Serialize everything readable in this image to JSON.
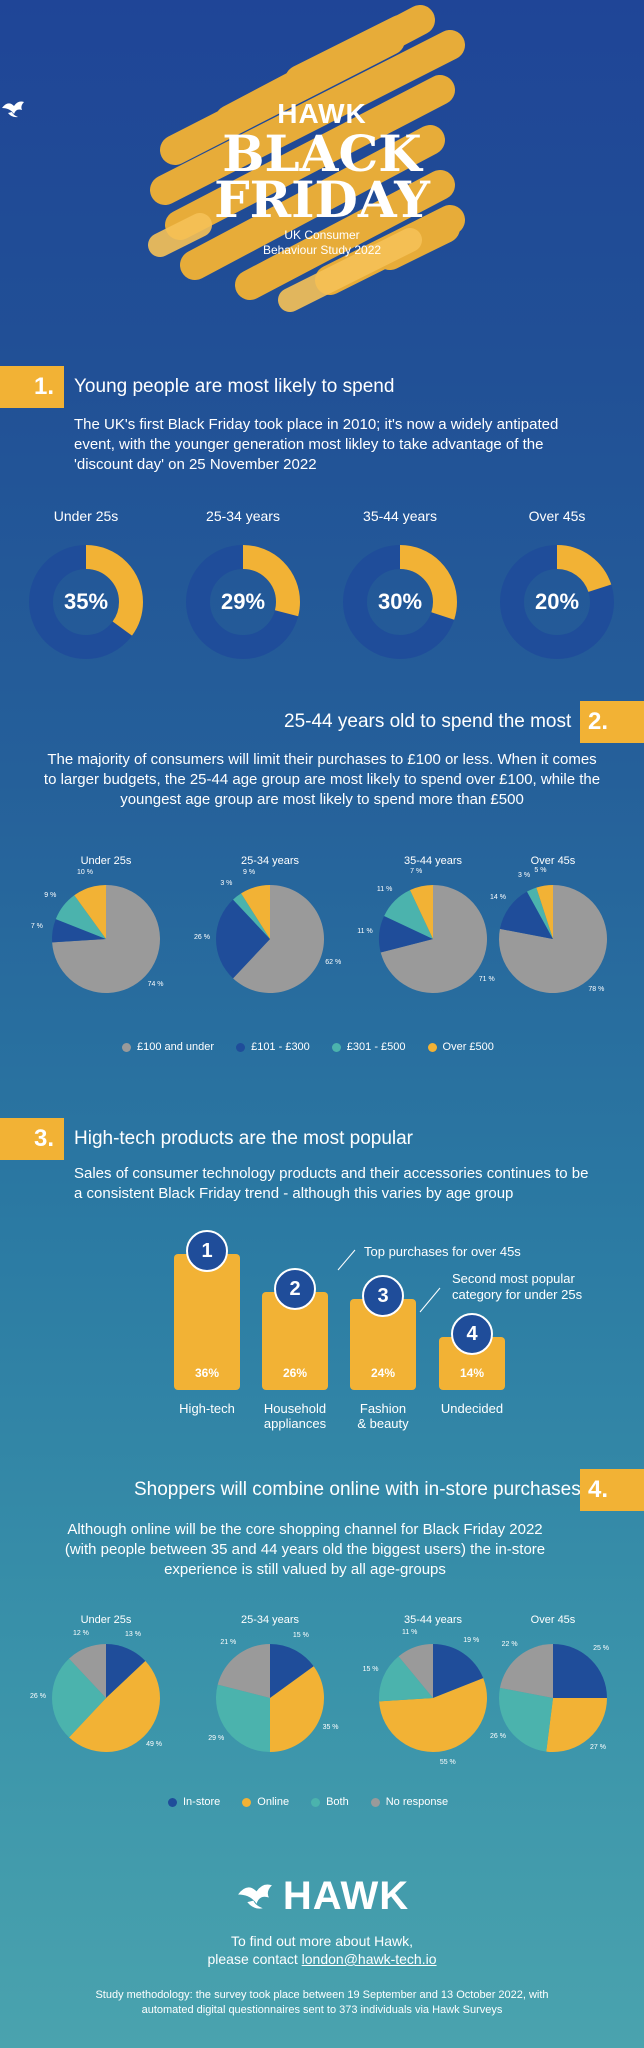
{
  "hero": {
    "brand": "HAWK",
    "title_line1": "BLACK",
    "title_line2": "FRIDAY",
    "subtitle_line1": "UK Consumer",
    "subtitle_line2": "Behaviour Study 2022"
  },
  "colors": {
    "navy": "#1f4d9a",
    "yellow": "#f2b235",
    "teal": "#4bb3ad",
    "grey": "#9a9a9a"
  },
  "section1": {
    "number": "1.",
    "title": "Young people are most likely to spend",
    "text": "The UK's first Black Friday took place in 2010; it's now a widely antipated event, with the younger generation most likley to take advantage of the 'discount day' on 25 November 2022",
    "donuts": [
      {
        "label": "Under 25s",
        "percent_text": "35%",
        "value": 35
      },
      {
        "label": "25-34 years",
        "percent_text": "29%",
        "value": 29
      },
      {
        "label": "35-44 years",
        "percent_text": "30%",
        "value": 30
      },
      {
        "label": "Over 45s",
        "percent_text": "20%",
        "value": 20
      }
    ]
  },
  "section2": {
    "number": "2.",
    "title": "25-44 years old to spend the most",
    "text": "The majority of consumers will limit their purchases to £100 or less. When it comes to larger budgets, the 25-44 age group are most likely to spend over £100, while the youngest age group are most likely to spend more than £500",
    "legend": [
      "£100 and under",
      "£101 - £300",
      "£301 - £500",
      "Over £500"
    ]
  },
  "section3": {
    "number": "3.",
    "title": "High-tech products are the most popular",
    "text": "Sales of consumer technology products and their accessories continues to be a consistent Black Friday trend - although this varies by age group",
    "note1": "Top purchases for over 45s",
    "note2_line1": "Second most popular",
    "note2_line2": "category for under 25s",
    "bars": [
      {
        "rank": "1",
        "percent_text": "36%",
        "value": 36,
        "label_line1": "High-tech",
        "label_line2": ""
      },
      {
        "rank": "2",
        "percent_text": "26%",
        "value": 26,
        "label_line1": "Household",
        "label_line2": "appliances"
      },
      {
        "rank": "3",
        "percent_text": "24%",
        "value": 24,
        "label_line1": "Fashion",
        "label_line2": "& beauty"
      },
      {
        "rank": "4",
        "percent_text": "14%",
        "value": 14,
        "label_line1": "Undecided",
        "label_line2": ""
      }
    ]
  },
  "section4": {
    "number": "4.",
    "title": "Shoppers will combine online with in-store purchases",
    "text_line1": "Although online will be the core shopping channel for Black Friday 2022",
    "text_line2": "(with people between 35 and 44 years old the biggest users) the in-store",
    "text_line3": "experience is still valued by all age-groups",
    "legend": [
      "In-store",
      "Online",
      "Both",
      "No response"
    ]
  },
  "chart_data": [
    {
      "type": "pie",
      "title": "Under 25s",
      "categories": [
        "£100 and under",
        "£101 - £300",
        "£301 - £500",
        "Over £500"
      ],
      "values": [
        74,
        7,
        9,
        10
      ],
      "labels": [
        "74 %",
        "7 %",
        "9 %",
        "10 %"
      ]
    },
    {
      "type": "pie",
      "title": "25-34 years",
      "categories": [
        "£100 and under",
        "£101 - £300",
        "£301 - £500",
        "Over £500"
      ],
      "values": [
        62,
        26,
        3,
        9
      ],
      "labels": [
        "62 %",
        "26 %",
        "3 %",
        "9 %"
      ]
    },
    {
      "type": "pie",
      "title": "35-44 years",
      "categories": [
        "£100 and under",
        "£101 - £300",
        "£301 - £500",
        "Over £500"
      ],
      "values": [
        71,
        11,
        11,
        7
      ],
      "labels": [
        "71 %",
        "11 %",
        "11 %",
        "7 %"
      ]
    },
    {
      "type": "pie",
      "title": "Over 45s",
      "categories": [
        "£100 and under",
        "£101 - £300",
        "£301 - £500",
        "Over £500"
      ],
      "values": [
        78,
        14,
        3,
        5
      ],
      "labels": [
        "78 %",
        "14 %",
        "3 %",
        "5 %"
      ]
    },
    {
      "type": "pie",
      "title": "Under 25s",
      "categories": [
        "In-store",
        "Online",
        "Both",
        "No response"
      ],
      "values": [
        13,
        49,
        26,
        12
      ],
      "labels": [
        "13 %",
        "49 %",
        "26 %",
        "12 %"
      ]
    },
    {
      "type": "pie",
      "title": "25-34 years",
      "categories": [
        "In-store",
        "Online",
        "Both",
        "No response"
      ],
      "values": [
        15,
        35,
        29,
        21
      ],
      "labels": [
        "15 %",
        "35 %",
        "29 %",
        "21 %"
      ]
    },
    {
      "type": "pie",
      "title": "35-44 years",
      "categories": [
        "In-store",
        "Online",
        "Both",
        "No response"
      ],
      "values": [
        19,
        55,
        15,
        11
      ],
      "labels": [
        "19 %",
        "55 %",
        "15 %",
        "11 %"
      ]
    },
    {
      "type": "pie",
      "title": "Over 45s",
      "categories": [
        "In-store",
        "Online",
        "Both",
        "No response"
      ],
      "values": [
        25,
        27,
        26,
        22
      ],
      "labels": [
        "25 %",
        "27 %",
        "26 %",
        "22 %"
      ]
    }
  ],
  "footer": {
    "brand": "HAWK",
    "contact_line1": "To find out more about Hawk,",
    "contact_prefix": "please contact ",
    "contact_email": "london@hawk-tech.io",
    "method_line1": "Study methodology: the survey took place between 19 September and 13 October 2022, with",
    "method_line2": "automated digital questionnaires sent to 373 individuals via Hawk Surveys"
  }
}
